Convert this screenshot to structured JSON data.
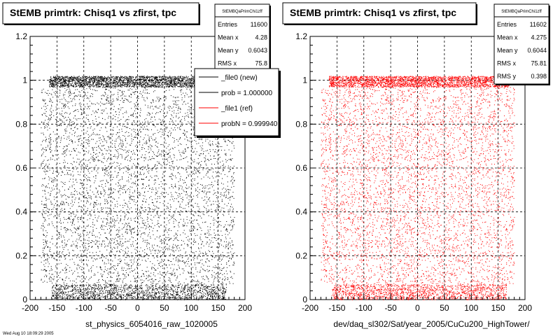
{
  "panels": [
    {
      "title": "StEMB primtrk: Chisq1 vs zfirst, tpc",
      "xlabel": "st_physics_6054016_raw_1020005",
      "color": "#000000",
      "stats": {
        "name": "StEMBQaPrimChi1zff",
        "rows": [
          {
            "k": "Entries",
            "v": "11600"
          },
          {
            "k": "Mean x",
            "v": "4.28"
          },
          {
            "k": "Mean y",
            "v": "0.6043"
          },
          {
            "k": "RMS x",
            "v": "75.8"
          }
        ]
      },
      "legend": [
        {
          "label": "_file0 (new)",
          "color": "#000000"
        },
        {
          "label": "prob = 1.000000",
          "color": "#000000"
        },
        {
          "label": "_file1 (ref)",
          "color": "#ff0000"
        },
        {
          "label": "probN = 0.999940",
          "color": "#ff0000"
        }
      ]
    },
    {
      "title": "StEMB primtrk: Chisq1 vs zfirst, tpc",
      "xlabel": "dev/daq_sl302/Sat/year_2005/CuCu200_HighTower/",
      "color": "#ff0000",
      "stats": {
        "name": "StEMBQaPrimChi1zff",
        "rows": [
          {
            "k": "Entries",
            "v": "11602"
          },
          {
            "k": "Mean x",
            "v": "4.275"
          },
          {
            "k": "Mean y",
            "v": "0.6044"
          },
          {
            "k": "RMS x",
            "v": "75.81"
          },
          {
            "k": "RMS y",
            "v": "0.398"
          }
        ]
      }
    }
  ],
  "footer_text": "Wed Aug 10 18:09:29 2005",
  "chart_data": [
    {
      "type": "scatter",
      "title": "StEMB primtrk: Chisq1 vs zfirst, tpc",
      "xlabel": "st_physics_6054016_raw_1020005",
      "xlim": [
        -200,
        200
      ],
      "ylim": [
        0,
        1.2
      ],
      "xticks": [
        -200,
        -150,
        -100,
        -50,
        0,
        50,
        100,
        150,
        200
      ],
      "yticks": [
        0,
        0.2,
        0.4,
        0.6,
        0.8,
        1,
        1.2
      ],
      "grid": true,
      "series": [
        {
          "name": "_file0 (new)",
          "color": "#000000",
          "bands": [
            {
              "y_range": [
                0.97,
                1.02
              ],
              "x_range": [
                -165,
                170
              ],
              "n": 2600
            },
            {
              "y_range": [
                0.0,
                0.07
              ],
              "x_range": [
                -160,
                165
              ],
              "n": 1600
            },
            {
              "y_range": [
                0.07,
                0.97
              ],
              "x_range": [
                -180,
                180
              ],
              "n": 5000
            }
          ]
        }
      ]
    },
    {
      "type": "scatter",
      "title": "StEMB primtrk: Chisq1 vs zfirst, tpc",
      "xlabel": "dev/daq_sl302/Sat/year_2005/CuCu200_HighTower/",
      "xlim": [
        -200,
        200
      ],
      "ylim": [
        0,
        1.2
      ],
      "xticks": [
        -200,
        -150,
        -100,
        -50,
        0,
        50,
        100,
        150,
        200
      ],
      "yticks": [
        0,
        0.2,
        0.4,
        0.6,
        0.8,
        1,
        1.2
      ],
      "grid": true,
      "series": [
        {
          "name": "_file1 (ref)",
          "color": "#ff0000",
          "bands": [
            {
              "y_range": [
                0.97,
                1.02
              ],
              "x_range": [
                -165,
                170
              ],
              "n": 2600
            },
            {
              "y_range": [
                0.0,
                0.07
              ],
              "x_range": [
                -160,
                165
              ],
              "n": 1600
            },
            {
              "y_range": [
                0.07,
                0.97
              ],
              "x_range": [
                -180,
                180
              ],
              "n": 5000
            }
          ]
        }
      ]
    }
  ]
}
